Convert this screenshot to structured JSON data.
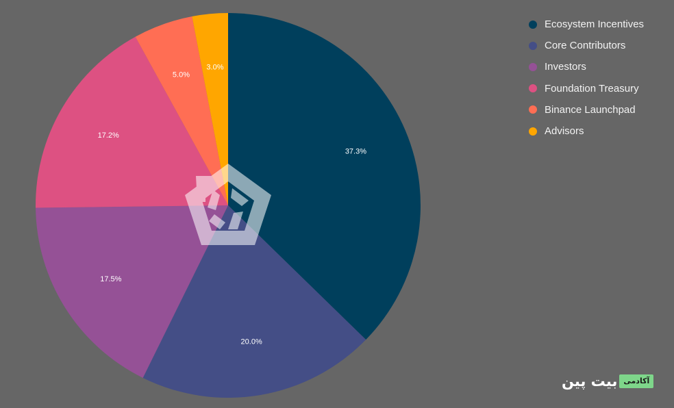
{
  "chart_data": {
    "type": "pie",
    "title": "",
    "start_angle_deg": 0,
    "direction": "clockwise",
    "labels_on_slices": true,
    "legend_position": "top-right",
    "slices": [
      {
        "label": "Ecosystem Incentives",
        "value": 37.3,
        "display": "37.3%",
        "color": "#003f5c"
      },
      {
        "label": "Core Contributors",
        "value": 20.0,
        "display": "20.0%",
        "color": "#444e86"
      },
      {
        "label": "Investors",
        "value": 17.5,
        "display": "17.5%",
        "color": "#955196"
      },
      {
        "label": "Foundation Treasury",
        "value": 17.2,
        "display": "17.2%",
        "color": "#dd5182"
      },
      {
        "label": "Binance Launchpad",
        "value": 5.0,
        "display": "5.0%",
        "color": "#ff6e54"
      },
      {
        "label": "Advisors",
        "value": 3.0,
        "display": "3.0%",
        "color": "#ffa600"
      }
    ]
  },
  "watermark": {
    "icon": "pentagon-logo-icon"
  },
  "brand": {
    "name": "بیت پین",
    "badge": "آکادمی",
    "badge_color": "#7ed68a"
  }
}
